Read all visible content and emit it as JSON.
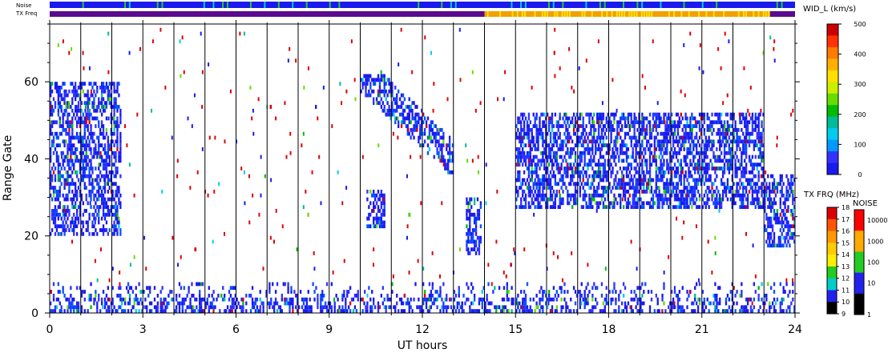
{
  "chart_data": {
    "type": "heatmap",
    "title": "",
    "xlabel": "UT hours",
    "ylabel": "Range Gate",
    "xlim": [
      0,
      24
    ],
    "ylim": [
      0,
      75
    ],
    "x_ticks": [
      "0",
      "3",
      "6",
      "9",
      "12",
      "15",
      "18",
      "21",
      "24"
    ],
    "y_ticks": [
      "0",
      "20",
      "40",
      "60"
    ],
    "grid": "vertical lines every hour",
    "parameter": "spectral width",
    "top_strips": {
      "noise_label": "Noise",
      "txfreq_label": "TX Freq",
      "txfreq_segments": [
        {
          "start": 0,
          "end": 14,
          "color": "#5a0a8c"
        },
        {
          "start": 14,
          "end": 23.2,
          "color": "#f0a000"
        },
        {
          "start": 23.2,
          "end": 24,
          "color": "#5a0a8c"
        }
      ]
    },
    "colorbars": {
      "width": {
        "label": "WID_L (km/s)",
        "range": [
          0,
          500
        ],
        "ticks": [
          "500",
          "400",
          "300",
          "200",
          "100",
          "0"
        ],
        "colors": [
          "#cc0000",
          "#ff3300",
          "#ff7a00",
          "#ffb000",
          "#ffe000",
          "#ccee00",
          "#66dd00",
          "#00bb00",
          "#00bb99",
          "#00ccee",
          "#0099ff",
          "#3333ff",
          "#1a1aee"
        ]
      },
      "tx_freq": {
        "label": "TX FRQ (MHz)",
        "ticks": [
          "18",
          "17",
          "16",
          "15",
          "14",
          "13",
          "12",
          "11",
          "10",
          "9"
        ],
        "colors": [
          "#dd0000",
          "#ff5500",
          "#ff9900",
          "#ffcc00",
          "#ffee00",
          "#22cc22",
          "#00cccc",
          "#2222ee",
          "#5a0a8c",
          "#000000"
        ]
      },
      "noise": {
        "label": "NOISE",
        "ticks": [
          "10000",
          "1000",
          "100",
          "10",
          "1"
        ],
        "colors": [
          "#ff0000",
          "#ffaa00",
          "#22cc22",
          "#2222ee",
          "#000000"
        ]
      }
    },
    "echo_regions": [
      {
        "name": "early-patch",
        "x": [
          0,
          2.3
        ],
        "gate": [
          20,
          60
        ]
      },
      {
        "name": "diagonal-drift",
        "x": [
          10,
          13
        ],
        "gate": [
          35,
          62
        ]
      },
      {
        "name": "gate-25-blob",
        "x": [
          10.2,
          10.8
        ],
        "gate": [
          22,
          32
        ]
      },
      {
        "name": "gate-20-streak",
        "x": [
          13.4,
          13.9
        ],
        "gate": [
          15,
          30
        ]
      },
      {
        "name": "main-band",
        "x": [
          15,
          23
        ],
        "gate": [
          27,
          52
        ]
      },
      {
        "name": "late-band",
        "x": [
          23,
          24
        ],
        "gate": [
          17,
          36
        ]
      },
      {
        "name": "ground-scatter",
        "x": [
          0,
          24
        ],
        "gate": [
          0,
          8
        ]
      }
    ],
    "scatter_points": [
      {
        "x": 0.6,
        "y": 67
      },
      {
        "x": 1.9,
        "y": 8
      },
      {
        "x": 2.4,
        "y": 48
      },
      {
        "x": 2.7,
        "y": 30
      },
      {
        "x": 3.3,
        "y": 70
      },
      {
        "x": 3.7,
        "y": 58
      },
      {
        "x": 4.2,
        "y": 14
      },
      {
        "x": 4.5,
        "y": 32
      },
      {
        "x": 4.9,
        "y": 62
      },
      {
        "x": 5.3,
        "y": 45
      },
      {
        "x": 5.6,
        "y": 20
      },
      {
        "x": 6.1,
        "y": 72
      },
      {
        "x": 6.4,
        "y": 35
      },
      {
        "x": 6.7,
        "y": 55
      },
      {
        "x": 7.2,
        "y": 18
      },
      {
        "x": 7.6,
        "y": 40
      },
      {
        "x": 7.9,
        "y": 65
      },
      {
        "x": 8.3,
        "y": 25
      },
      {
        "x": 8.6,
        "y": 50
      },
      {
        "x": 9.1,
        "y": 10
      },
      {
        "x": 9.4,
        "y": 28
      },
      {
        "x": 9.7,
        "y": 70
      },
      {
        "x": 10.4,
        "y": 12
      },
      {
        "x": 11.5,
        "y": 22
      },
      {
        "x": 12.3,
        "y": 15
      },
      {
        "x": 12.6,
        "y": 28
      },
      {
        "x": 13.2,
        "y": 60
      },
      {
        "x": 14.1,
        "y": 12
      },
      {
        "x": 14.4,
        "y": 55
      },
      {
        "x": 14.6,
        "y": 10
      },
      {
        "x": 15.5,
        "y": 58
      },
      {
        "x": 16.2,
        "y": 15
      },
      {
        "x": 16.7,
        "y": 68
      },
      {
        "x": 17.3,
        "y": 12
      },
      {
        "x": 18.1,
        "y": 60
      },
      {
        "x": 18.7,
        "y": 18
      },
      {
        "x": 19.4,
        "y": 70
      },
      {
        "x": 19.9,
        "y": 14
      },
      {
        "x": 20.6,
        "y": 72
      },
      {
        "x": 21.3,
        "y": 10
      },
      {
        "x": 21.8,
        "y": 56
      },
      {
        "x": 22.4,
        "y": 20
      },
      {
        "x": 23.4,
        "y": 45
      },
      {
        "x": 23.7,
        "y": 8
      }
    ]
  }
}
